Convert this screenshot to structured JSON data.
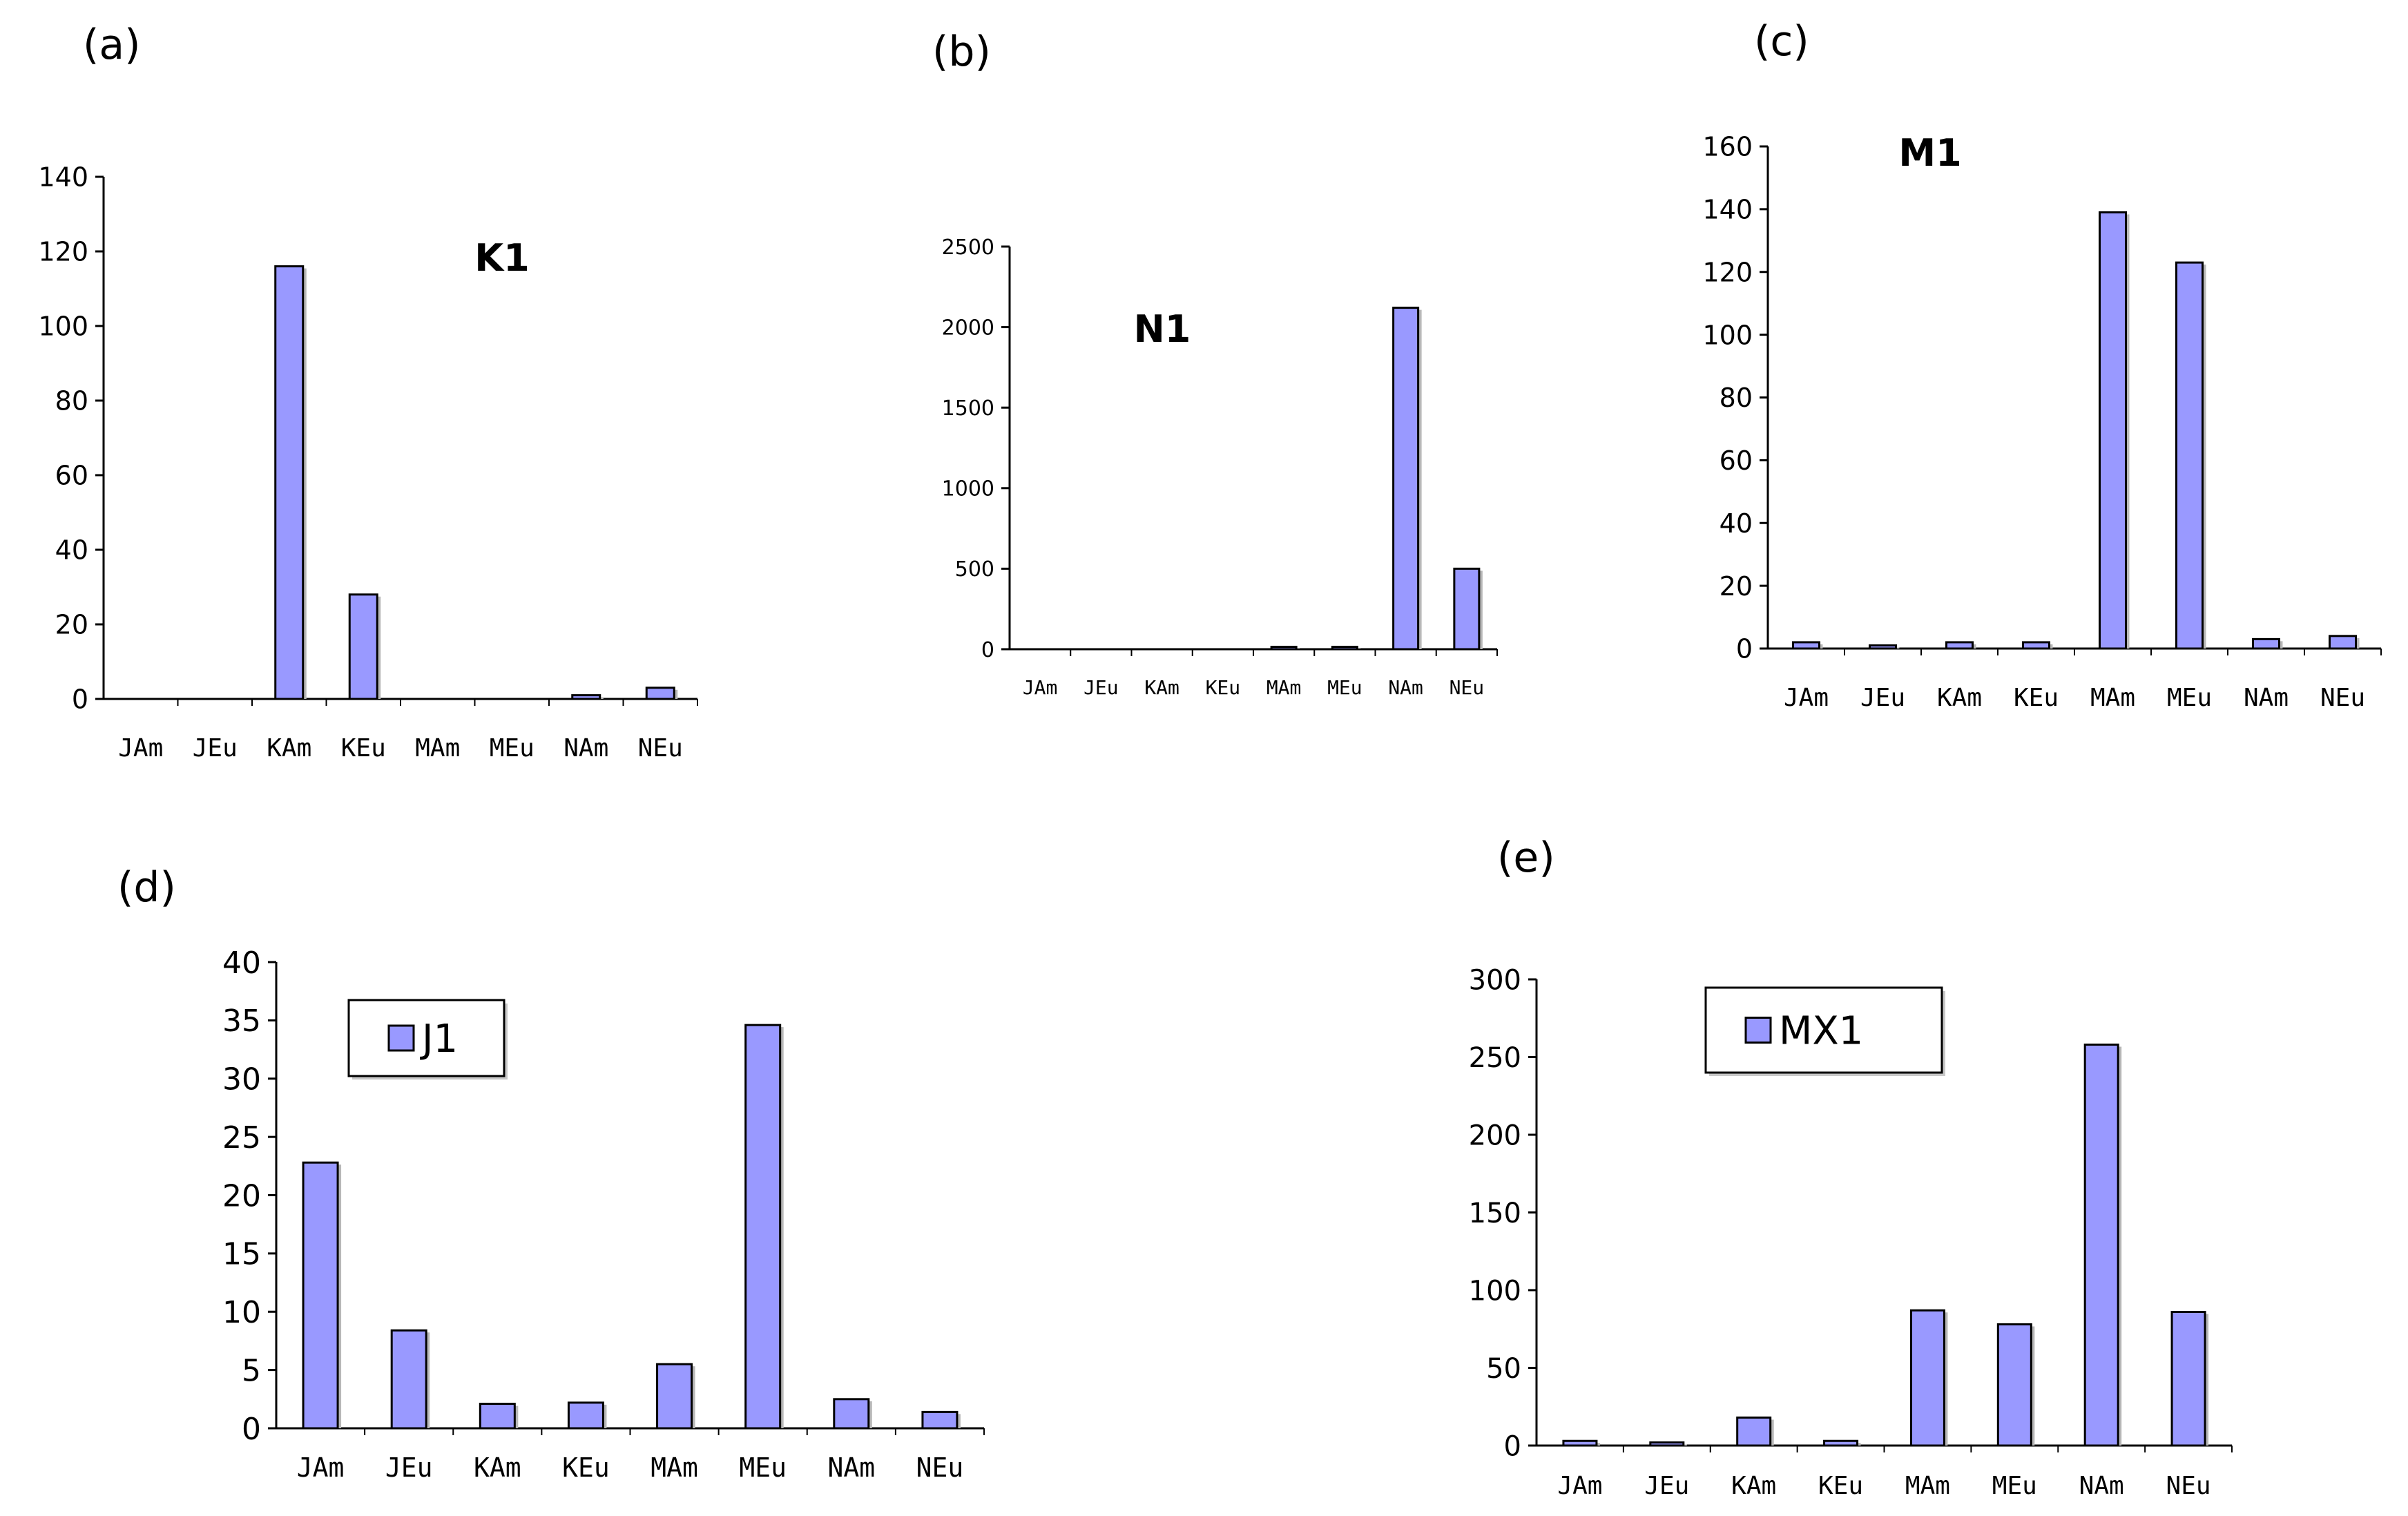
{
  "colors": {
    "bar_fill": "#9999ff",
    "bar_stroke": "#000000",
    "axis": "#000000",
    "background": "#ffffff"
  },
  "chart_data": [
    {
      "id": "a",
      "panel_label": "(a)",
      "type": "bar",
      "title": "K1",
      "categories": [
        "JAm",
        "JEu",
        "KAm",
        "KEu",
        "MAm",
        "MEu",
        "NAm",
        "NEu"
      ],
      "values": [
        0,
        0,
        116,
        28,
        0,
        0,
        1,
        3
      ],
      "ylim": [
        0,
        140
      ],
      "yticks": [
        0,
        20,
        40,
        60,
        80,
        100,
        120,
        140
      ],
      "legend": null,
      "grid": false
    },
    {
      "id": "b",
      "panel_label": "(b)",
      "type": "bar",
      "title": "N1",
      "categories": [
        "JAm",
        "JEu",
        "KAm",
        "KEu",
        "MAm",
        "MEu",
        "NAm",
        "NEu"
      ],
      "values": [
        0,
        0,
        0,
        0,
        15,
        15,
        2120,
        500
      ],
      "ylim": [
        0,
        2500
      ],
      "yticks": [
        0,
        500,
        1000,
        1500,
        2000,
        2500
      ],
      "legend": null,
      "grid": false
    },
    {
      "id": "c",
      "panel_label": "(c)",
      "type": "bar",
      "title": "M1",
      "categories": [
        "JAm",
        "JEu",
        "KAm",
        "KEu",
        "MAm",
        "MEu",
        "NAm",
        "NEu"
      ],
      "values": [
        2,
        1,
        2,
        2,
        139,
        123,
        3,
        4
      ],
      "ylim": [
        0,
        160
      ],
      "yticks": [
        0,
        20,
        40,
        60,
        80,
        100,
        120,
        140,
        160
      ],
      "legend": null,
      "grid": false
    },
    {
      "id": "d",
      "panel_label": "(d)",
      "type": "bar",
      "title": "",
      "categories": [
        "JAm",
        "JEu",
        "KAm",
        "KEu",
        "MAm",
        "MEu",
        "NAm",
        "NEu"
      ],
      "values": [
        22.8,
        8.4,
        2.1,
        2.2,
        5.5,
        34.6,
        2.5,
        1.4
      ],
      "ylim": [
        0,
        40
      ],
      "yticks": [
        0,
        5,
        10,
        15,
        20,
        25,
        30,
        35,
        40
      ],
      "legend": "J1",
      "grid": false
    },
    {
      "id": "e",
      "panel_label": "(e)",
      "type": "bar",
      "title": "",
      "categories": [
        "JAm",
        "JEu",
        "KAm",
        "KEu",
        "MAm",
        "MEu",
        "NAm",
        "NEu"
      ],
      "values": [
        3,
        2,
        18,
        3,
        87,
        78,
        258,
        86
      ],
      "ylim": [
        0,
        300
      ],
      "yticks": [
        0,
        50,
        100,
        150,
        200,
        250,
        300
      ],
      "legend": "MX1",
      "grid": false
    }
  ]
}
